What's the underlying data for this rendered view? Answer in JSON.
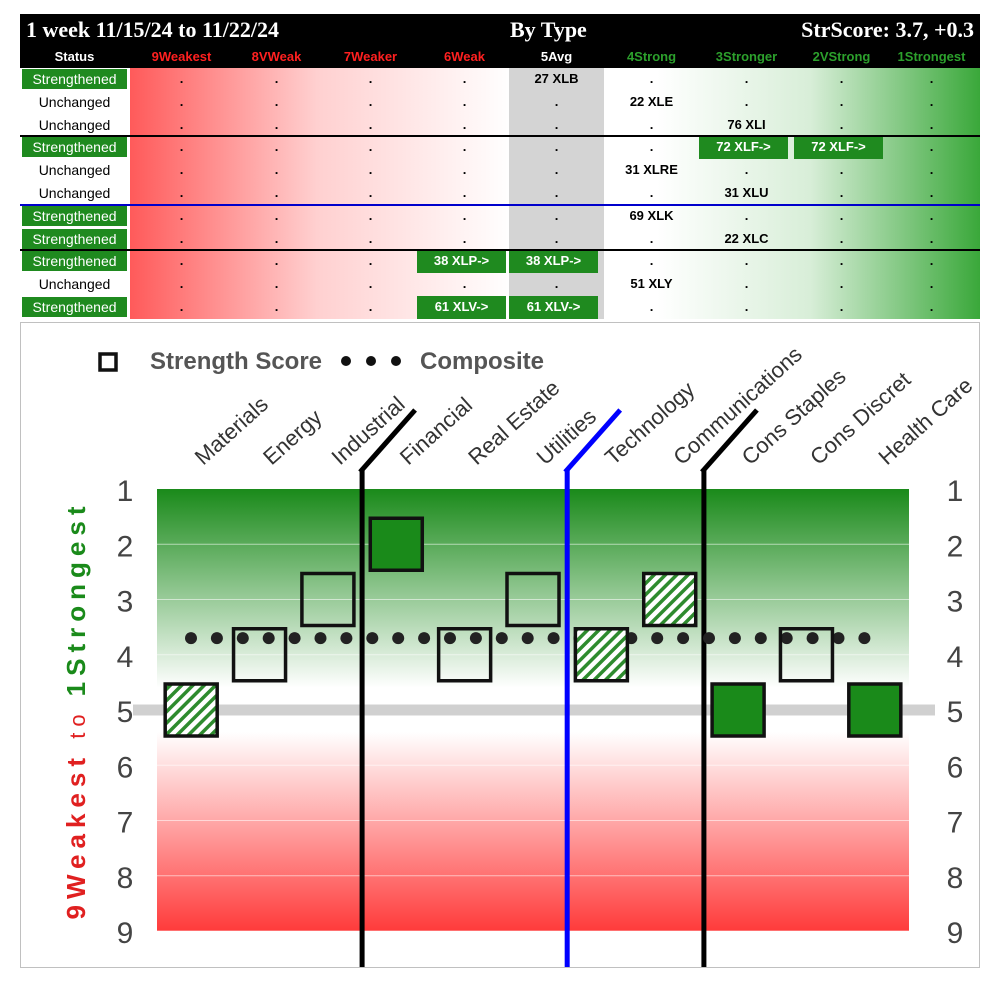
{
  "header": {
    "period": "1 week 11/15/24 to 11/22/24",
    "group": "By Type",
    "score": "StrScore: 3.7, +0.3"
  },
  "table": {
    "status_header": "Status",
    "columns": [
      {
        "label": "9Weakest",
        "color": "#ff2020"
      },
      {
        "label": "8VWeak",
        "color": "#ff2020"
      },
      {
        "label": "7Weaker",
        "color": "#ff2020"
      },
      {
        "label": "6Weak",
        "color": "#ff2020"
      },
      {
        "label": "5Avg",
        "color": "#ffffff"
      },
      {
        "label": "4Strong",
        "color": "#2ca02c"
      },
      {
        "label": "3Stronger",
        "color": "#2ca02c"
      },
      {
        "label": "2VStrong",
        "color": "#2ca02c"
      },
      {
        "label": "1Strongest",
        "color": "#2ca02c"
      }
    ],
    "rows": [
      {
        "status": "Strengthened",
        "cells": [
          ".",
          ".",
          ".",
          ".",
          "27 XLB",
          ".",
          ".",
          ".",
          "."
        ],
        "marked": []
      },
      {
        "status": "Unchanged",
        "cells": [
          ".",
          ".",
          ".",
          ".",
          ".",
          "22 XLE",
          ".",
          ".",
          "."
        ],
        "marked": []
      },
      {
        "status": "Unchanged",
        "cells": [
          ".",
          ".",
          ".",
          ".",
          ".",
          ".",
          "76 XLI",
          ".",
          "."
        ],
        "marked": []
      },
      {
        "status": "Strengthened",
        "cells": [
          ".",
          ".",
          ".",
          ".",
          ".",
          ".",
          "72 XLF->",
          "72 XLF->",
          "."
        ],
        "marked": [
          6,
          7
        ]
      },
      {
        "status": "Unchanged",
        "cells": [
          ".",
          ".",
          ".",
          ".",
          ".",
          "31 XLRE",
          ".",
          ".",
          "."
        ],
        "marked": []
      },
      {
        "status": "Unchanged",
        "cells": [
          ".",
          ".",
          ".",
          ".",
          ".",
          ".",
          "31 XLU",
          ".",
          "."
        ],
        "marked": []
      },
      {
        "status": "Strengthened",
        "cells": [
          ".",
          ".",
          ".",
          ".",
          ".",
          "69 XLK",
          ".",
          ".",
          "."
        ],
        "marked": []
      },
      {
        "status": "Strengthened",
        "cells": [
          ".",
          ".",
          ".",
          ".",
          ".",
          ".",
          "22 XLC",
          ".",
          "."
        ],
        "marked": []
      },
      {
        "status": "Strengthened",
        "cells": [
          ".",
          ".",
          ".",
          "38 XLP->",
          "38 XLP->",
          ".",
          ".",
          ".",
          "."
        ],
        "marked": [
          3,
          4
        ]
      },
      {
        "status": "Unchanged",
        "cells": [
          ".",
          ".",
          ".",
          ".",
          ".",
          "51 XLY",
          ".",
          ".",
          "."
        ],
        "marked": []
      },
      {
        "status": "Strengthened",
        "cells": [
          ".",
          ".",
          ".",
          "61 XLV->",
          "61 XLV->",
          ".",
          ".",
          ".",
          "."
        ],
        "marked": [
          3,
          4
        ]
      }
    ],
    "dividers": [
      {
        "after_row": 2,
        "color": "#000000"
      },
      {
        "after_row": 5,
        "color": "#0000cc"
      },
      {
        "after_row": 7,
        "color": "#000000"
      }
    ]
  },
  "chart_data": {
    "type": "scatter",
    "title": "",
    "legend": [
      "Strength Score",
      "Composite"
    ],
    "categories": [
      "Materials",
      "Energy",
      "Industrial",
      "Financial",
      "Real Estate",
      "Utilities",
      "Technology",
      "Communications",
      "Cons Staples",
      "Cons Discret",
      "Health Care"
    ],
    "strength_score": [
      5,
      4,
      3,
      2,
      4,
      3,
      4,
      3,
      5,
      4,
      5
    ],
    "marker_style": [
      "hatched",
      "empty",
      "empty",
      "filled",
      "empty",
      "empty",
      "hatched",
      "hatched",
      "filled",
      "empty",
      "filled"
    ],
    "composite": 3.7,
    "ylim": [
      1,
      9
    ],
    "y_ticks": [
      "1",
      "2",
      "3",
      "4",
      "5",
      "6",
      "7",
      "8",
      "9"
    ],
    "ylabel_top": "1Strongest",
    "ylabel_mid": "to",
    "ylabel_bottom": "9Weakest",
    "reference_line": 5,
    "group_dividers": [
      {
        "between": [
          2,
          3
        ],
        "color": "#000000"
      },
      {
        "between": [
          5,
          6
        ],
        "color": "#0000ff"
      },
      {
        "between": [
          7,
          8
        ],
        "color": "#000000"
      }
    ],
    "colors": {
      "strong": "#1a8a1a",
      "weak": "#ff3b3b",
      "filled": "#1a8a1a",
      "hatch": "#2e8b2e"
    }
  }
}
